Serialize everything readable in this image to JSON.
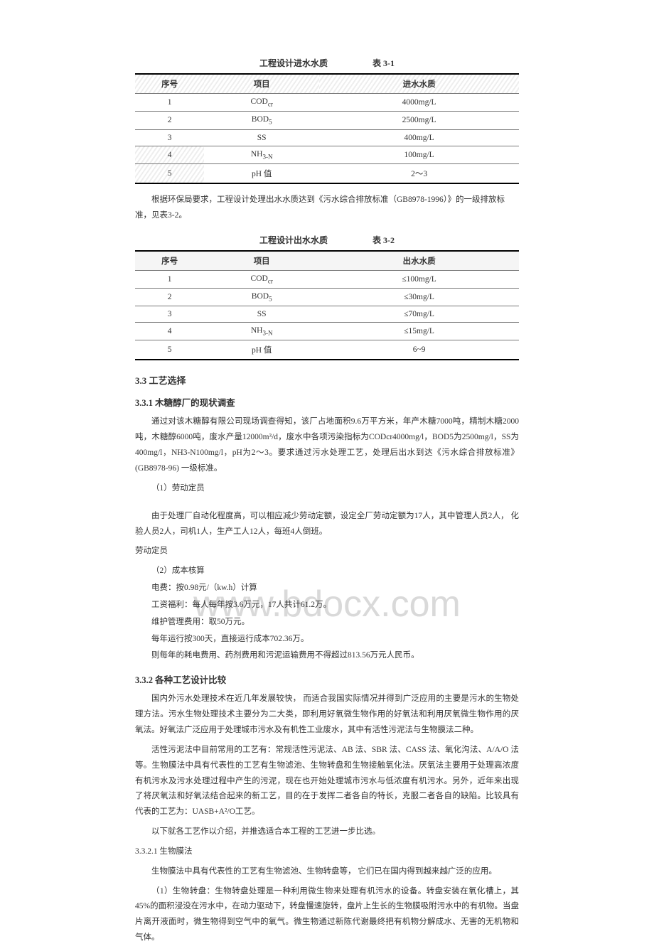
{
  "watermark": "www.bdocx.com",
  "table1": {
    "caption_title": "工程设计进水水质",
    "caption_num": "表 3-1",
    "headers": [
      "序号",
      "项目",
      "进水水质"
    ],
    "rows": [
      [
        "1",
        "COD",
        "cr",
        "4000mg/L"
      ],
      [
        "2",
        "BOD",
        "5",
        "2500mg/L"
      ],
      [
        "3",
        "SS",
        "",
        "400mg/L"
      ],
      [
        "4",
        "NH",
        "3-N",
        "100mg/L"
      ],
      [
        "5",
        "pH 值",
        "",
        "2～3"
      ]
    ]
  },
  "note1": "根据环保局要求，工程设计处理出水水质达到《污水综合排放标准（GB8978-1996）》的一级排放标准，见表3-2。",
  "table2": {
    "caption_title": "工程设计出水水质",
    "caption_num": "表 3-2",
    "headers": [
      "序号",
      "项目",
      "出水水质"
    ],
    "rows": [
      [
        "1",
        "COD",
        "cr",
        "≤100mg/L"
      ],
      [
        "2",
        "BOD",
        "5",
        "≤30mg/L"
      ],
      [
        "3",
        "SS",
        "",
        "≤70mg/L"
      ],
      [
        "4",
        "NH",
        "3-N",
        "≤15mg/L"
      ],
      [
        "5",
        "pH 值",
        "",
        "6~9"
      ]
    ]
  },
  "h3_1": "3.3 工艺选择",
  "h4_1": "3.3.1  木糖醇厂的现状调查",
  "p1": "通过对该木糖醇有限公司现场调查得知，该厂占地面积9.6万平方米，年产木糖7000吨，精制木糖2000吨，木糖醇6000吨，废水产量12000m³/d，废水中各项污染指标为CODcr4000mg/l，BOD5为2500mg/l，SS为400mg/l，NH3-N100mg/l，pH为2～3。要求通过污水处理工艺，处理后出水到达《污水综合排放标准》(GB8978-96) 一级标准。",
  "p2_lab": "（1）劳动定员",
  "p2": "由于处理厂自动化程度高，可以相应减少劳动定额，设定全厂劳动定额为17人，其中管理人员2人， 化验人员2人，司机1人，生产工人12人，每班4人倒班。",
  "p2_tail": "劳动定员",
  "p3_lab": "（2）成本核算",
  "l1": "电费：按0.98元/（kw.h）计算",
  "l2": "工资福利：每人每年按3.6万元，17人共计61.2万。",
  "l3": "维护管理费用：取50万元。",
  "l4": "每年运行按300天，直接运行成本702.36万。",
  "l5": "则每年的耗电费用、药剂费用和污泥运输费用不得超过813.56万元人民币。",
  "h4_2": "3.3.2  各种工艺设计比较",
  "p4": "国内外污水处理技术在近几年发展较快， 而适合我国实际情况并得到广泛应用的主要是污水的生物处理方法。污水生物处理技术主要分为二大类，即利用好氧微生物作用的好氧法和利用厌氧微生物作用的厌氧法。好氧法广泛应用于处理城市污水及有机性工业废水，其中有活性污泥法与生物膜法二种。",
  "p5": "活性污泥法中目前常用的工艺有：常规活性污泥法、AB 法、SBR 法、CASS 法、氧化沟法、A/A/O 法等。生物膜法中具有代表性的工艺有生物滤池、生物转盘和生物接触氧化法。厌氧法主要用于处理高浓度有机污水及污水处理过程中产生的污泥，现在也开始处理城市污水与低浓度有机污水。另外，近年来出现了将厌氧法和好氧法结合起来的新工艺，目的在于发挥二者各自的特长，克服二者各自的缺陷。比较具有代表的工艺为：UASB+A²/O工艺。",
  "p6": "以下就各工艺作以介绍，并推选适合本工程的工艺进一步比选。",
  "p7_lab": "3.3.2.1 生物膜法",
  "p7": "生物膜法中具有代表性的工艺有生物滤池、生物转盘等，  它们已在国内得到越来越广泛的应用。",
  "p8": "（1）生物转盘：生物转盘处理是一种利用微生物来处理有机污水的设备。转盘安装在氧化槽上，其 45%的面积浸没在污水中，在动力驱动下，转盘慢速旋转，盘片上生长的生物膜吸附污水中的有机物。当盘片离开液面时，微生物得到空气中的氧气。微生物通过新陈代谢最终把有机物分解成水、无害的无机物和气体。"
}
